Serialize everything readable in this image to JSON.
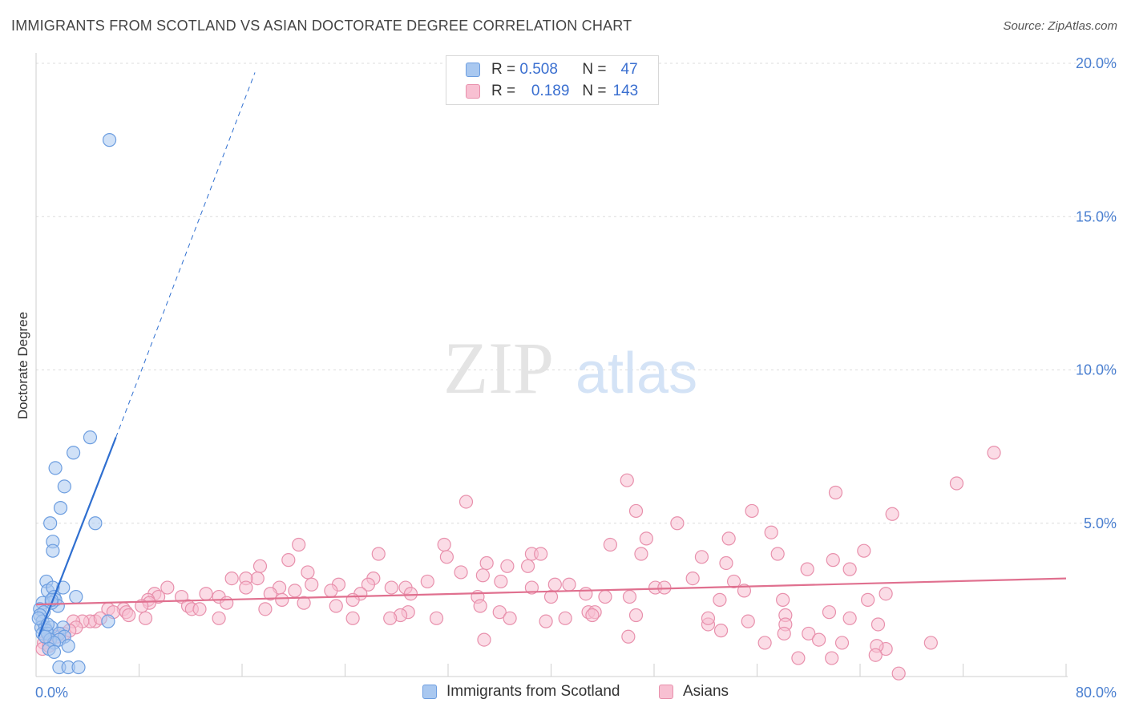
{
  "title": "IMMIGRANTS FROM SCOTLAND VS ASIAN DOCTORATE DEGREE CORRELATION CHART",
  "source": "Source: ZipAtlas.com",
  "watermark": {
    "zip": "ZIP",
    "atlas": "atlas"
  },
  "legend_stats": [
    {
      "r_label": "R =",
      "r_value": "0.508",
      "n_label": "N =",
      "n_value": "47",
      "color": "#a9c8f0",
      "border": "#6d9ee0"
    },
    {
      "r_label": "R =",
      "r_value": "0.189",
      "n_label": "N =",
      "n_value": "143",
      "color": "#f8c0d2",
      "border": "#e890ac"
    }
  ],
  "bottom_legend": [
    {
      "label": "Immigrants from Scotland",
      "color": "#a9c8f0",
      "border": "#6d9ee0"
    },
    {
      "label": "Asians",
      "color": "#f8c0d2",
      "border": "#e890ac"
    }
  ],
  "chart_data": {
    "type": "scatter",
    "title": "IMMIGRANTS FROM SCOTLAND VS ASIAN DOCTORATE DEGREE CORRELATION CHART",
    "xlabel": "",
    "ylabel": "Doctorate Degree",
    "xlim": [
      0,
      80
    ],
    "ylim": [
      0,
      20
    ],
    "x_tick_labels": [
      "0.0%",
      "80.0%"
    ],
    "y_ticks": [
      5,
      10,
      15,
      20
    ],
    "y_tick_labels": [
      "5.0%",
      "10.0%",
      "15.0%",
      "20.0%"
    ],
    "grid": true,
    "series": [
      {
        "name": "Immigrants from Scotland",
        "color": "#6d9ee0",
        "fill": "#a9c8f0",
        "trend": {
          "x0": 0.2,
          "y0": 1.3,
          "x1": 6.2,
          "y1": 7.8,
          "dash_to_x": 17.0,
          "dash_to_y": 19.7,
          "color": "#2f6fd0"
        },
        "points": [
          [
            5.7,
            17.5
          ],
          [
            4.2,
            7.8
          ],
          [
            2.9,
            7.3
          ],
          [
            1.5,
            6.8
          ],
          [
            2.2,
            6.2
          ],
          [
            1.9,
            5.5
          ],
          [
            4.6,
            5.0
          ],
          [
            1.1,
            5.0
          ],
          [
            1.3,
            4.4
          ],
          [
            1.3,
            4.1
          ],
          [
            0.8,
            3.1
          ],
          [
            2.1,
            2.9
          ],
          [
            0.9,
            2.8
          ],
          [
            1.3,
            2.9
          ],
          [
            3.1,
            2.6
          ],
          [
            1.4,
            2.6
          ],
          [
            1.5,
            2.5
          ],
          [
            0.5,
            2.4
          ],
          [
            0.3,
            2.2
          ],
          [
            1.7,
            2.3
          ],
          [
            1.2,
            2.4
          ],
          [
            0.6,
            2.1
          ],
          [
            0.3,
            2.0
          ],
          [
            0.5,
            1.8
          ],
          [
            0.4,
            1.6
          ],
          [
            0.7,
            1.6
          ],
          [
            2.1,
            1.6
          ],
          [
            1.2,
            1.6
          ],
          [
            0.8,
            1.5
          ],
          [
            5.6,
            1.8
          ],
          [
            0.5,
            1.4
          ],
          [
            0.9,
            1.4
          ],
          [
            1.8,
            1.4
          ],
          [
            2.2,
            1.3
          ],
          [
            1.1,
            1.2
          ],
          [
            1.8,
            1.2
          ],
          [
            1.4,
            1.1
          ],
          [
            2.5,
            1.0
          ],
          [
            1.0,
            0.9
          ],
          [
            1.4,
            0.8
          ],
          [
            0.7,
            1.3
          ],
          [
            0.2,
            1.9
          ],
          [
            0.9,
            1.7
          ],
          [
            1.8,
            0.3
          ],
          [
            2.5,
            0.3
          ],
          [
            3.3,
            0.3
          ],
          [
            1.2,
            2.5
          ]
        ]
      },
      {
        "name": "Asians",
        "color": "#e890ac",
        "fill": "#f8c0d2",
        "trend": {
          "x0": 0.0,
          "y0": 2.35,
          "x1": 80.0,
          "y1": 3.2,
          "color": "#e0708f"
        },
        "points": [
          [
            74.4,
            7.3
          ],
          [
            71.5,
            6.3
          ],
          [
            45.9,
            6.4
          ],
          [
            62.1,
            6.0
          ],
          [
            33.4,
            5.7
          ],
          [
            46.6,
            5.4
          ],
          [
            55.6,
            5.4
          ],
          [
            66.5,
            5.3
          ],
          [
            49.8,
            5.0
          ],
          [
            57.1,
            4.7
          ],
          [
            47.4,
            4.5
          ],
          [
            53.8,
            4.5
          ],
          [
            44.6,
            4.3
          ],
          [
            31.7,
            4.3
          ],
          [
            20.4,
            4.3
          ],
          [
            64.3,
            4.1
          ],
          [
            26.6,
            4.0
          ],
          [
            38.5,
            4.0
          ],
          [
            39.2,
            4.0
          ],
          [
            47.0,
            4.0
          ],
          [
            51.7,
            3.9
          ],
          [
            57.6,
            4.0
          ],
          [
            31.9,
            3.9
          ],
          [
            19.6,
            3.8
          ],
          [
            35.0,
            3.7
          ],
          [
            53.6,
            3.7
          ],
          [
            61.9,
            3.8
          ],
          [
            36.6,
            3.6
          ],
          [
            38.2,
            3.6
          ],
          [
            17.4,
            3.6
          ],
          [
            59.9,
            3.5
          ],
          [
            63.2,
            3.5
          ],
          [
            21.1,
            3.4
          ],
          [
            33.0,
            3.4
          ],
          [
            34.7,
            3.3
          ],
          [
            17.2,
            3.2
          ],
          [
            15.2,
            3.2
          ],
          [
            16.3,
            3.2
          ],
          [
            26.2,
            3.2
          ],
          [
            30.4,
            3.1
          ],
          [
            36.1,
            3.1
          ],
          [
            25.8,
            3.0
          ],
          [
            40.3,
            3.0
          ],
          [
            51.0,
            3.2
          ],
          [
            54.2,
            3.1
          ],
          [
            41.4,
            3.0
          ],
          [
            10.2,
            2.9
          ],
          [
            16.3,
            2.9
          ],
          [
            18.9,
            2.9
          ],
          [
            21.4,
            3.0
          ],
          [
            23.5,
            3.0
          ],
          [
            27.6,
            2.9
          ],
          [
            28.7,
            2.9
          ],
          [
            38.5,
            2.9
          ],
          [
            42.7,
            2.7
          ],
          [
            48.1,
            2.9
          ],
          [
            48.8,
            2.9
          ],
          [
            55.0,
            2.8
          ],
          [
            66.0,
            2.7
          ],
          [
            13.2,
            2.7
          ],
          [
            18.2,
            2.7
          ],
          [
            20.1,
            2.8
          ],
          [
            22.9,
            2.8
          ],
          [
            25.2,
            2.7
          ],
          [
            29.1,
            2.7
          ],
          [
            34.3,
            2.6
          ],
          [
            9.2,
            2.7
          ],
          [
            40.0,
            2.6
          ],
          [
            44.2,
            2.6
          ],
          [
            46.1,
            2.6
          ],
          [
            53.1,
            2.5
          ],
          [
            58.0,
            2.5
          ],
          [
            64.6,
            2.5
          ],
          [
            9.5,
            2.6
          ],
          [
            11.3,
            2.6
          ],
          [
            14.2,
            2.6
          ],
          [
            24.6,
            2.5
          ],
          [
            19.1,
            2.5
          ],
          [
            8.7,
            2.5
          ],
          [
            20.8,
            2.4
          ],
          [
            8.8,
            2.4
          ],
          [
            14.8,
            2.4
          ],
          [
            11.8,
            2.3
          ],
          [
            12.1,
            2.2
          ],
          [
            12.7,
            2.2
          ],
          [
            6.8,
            2.2
          ],
          [
            7.0,
            2.1
          ],
          [
            42.9,
            2.1
          ],
          [
            43.4,
            2.1
          ],
          [
            17.8,
            2.2
          ],
          [
            23.3,
            2.3
          ],
          [
            34.5,
            2.3
          ],
          [
            8.2,
            2.3
          ],
          [
            5.6,
            2.2
          ],
          [
            28.9,
            2.1
          ],
          [
            28.3,
            2.0
          ],
          [
            36.0,
            2.1
          ],
          [
            61.6,
            2.1
          ],
          [
            6.0,
            2.1
          ],
          [
            7.2,
            2.0
          ],
          [
            36.8,
            1.9
          ],
          [
            31.1,
            1.9
          ],
          [
            24.6,
            1.9
          ],
          [
            27.5,
            1.9
          ],
          [
            46.6,
            2.0
          ],
          [
            55.3,
            1.8
          ],
          [
            58.2,
            2.0
          ],
          [
            58.2,
            1.7
          ],
          [
            63.2,
            1.9
          ],
          [
            65.4,
            1.7
          ],
          [
            52.2,
            1.7
          ],
          [
            53.2,
            1.5
          ],
          [
            43.2,
            2.0
          ],
          [
            4.6,
            1.8
          ],
          [
            4.2,
            1.8
          ],
          [
            3.6,
            1.8
          ],
          [
            2.9,
            1.8
          ],
          [
            3.1,
            1.6
          ],
          [
            2.2,
            1.4
          ],
          [
            2.6,
            1.5
          ],
          [
            5.0,
            1.9
          ],
          [
            14.2,
            1.9
          ],
          [
            8.5,
            1.9
          ],
          [
            39.6,
            1.8
          ],
          [
            41.1,
            1.9
          ],
          [
            52.2,
            1.9
          ],
          [
            46.0,
            1.3
          ],
          [
            34.8,
            1.2
          ],
          [
            58.1,
            1.4
          ],
          [
            60.0,
            1.4
          ],
          [
            60.8,
            1.2
          ],
          [
            56.6,
            1.1
          ],
          [
            62.6,
            1.1
          ],
          [
            66.0,
            0.9
          ],
          [
            65.3,
            1.0
          ],
          [
            69.5,
            1.1
          ],
          [
            59.2,
            0.6
          ],
          [
            61.8,
            0.6
          ],
          [
            65.2,
            0.7
          ],
          [
            67.0,
            0.1
          ],
          [
            1.6,
            1.3
          ],
          [
            1.0,
            1.2
          ],
          [
            0.6,
            1.1
          ],
          [
            0.5,
            0.9
          ],
          [
            1.0,
            1.0
          ]
        ]
      }
    ]
  }
}
